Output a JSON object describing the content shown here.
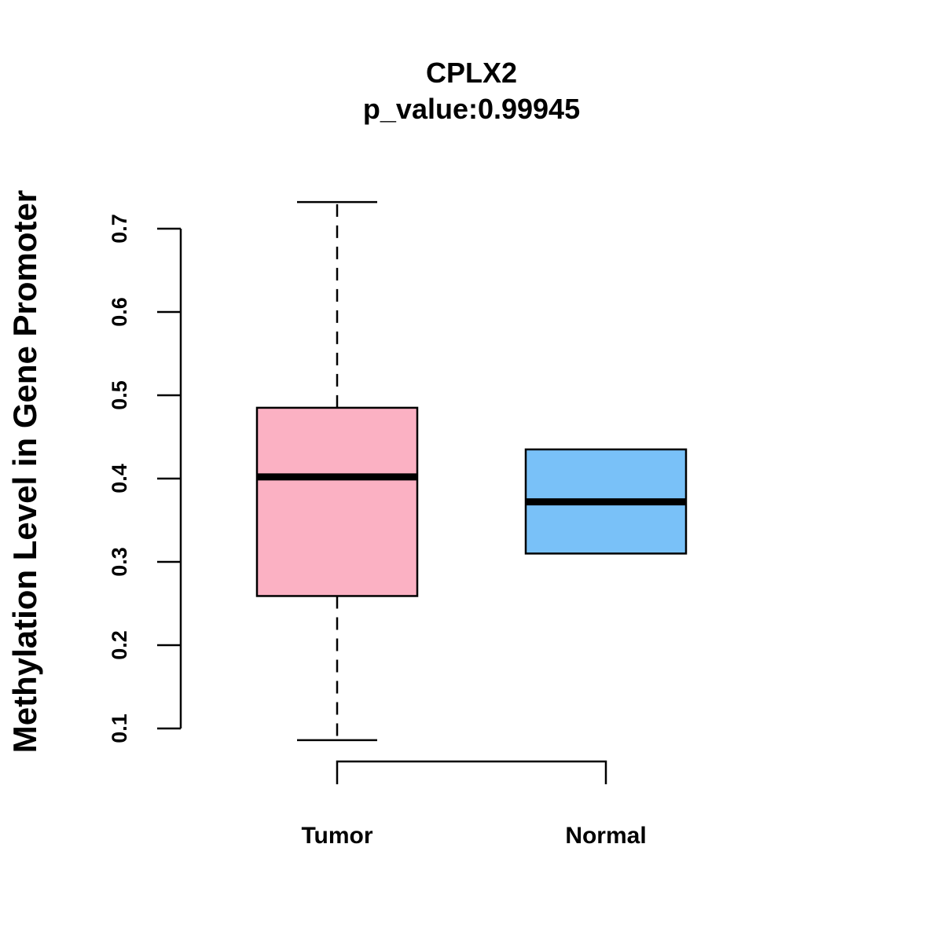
{
  "chart_data": {
    "type": "boxplot",
    "title": "CPLX2",
    "subtitle": "p_value:0.99945",
    "ylabel": "Methylation Level in Gene Promoter",
    "xlabel": "",
    "ylim": [
      0.1,
      0.7
    ],
    "yticks": [
      0.1,
      0.2,
      0.3,
      0.4,
      0.5,
      0.6,
      0.7
    ],
    "ytick_labels": [
      "0.1",
      "0.2",
      "0.3",
      "0.4",
      "0.5",
      "0.6",
      "0.7"
    ],
    "comparison_bracket": true,
    "groups": [
      {
        "name": "Tumor",
        "color": "#FBB1C3",
        "whisker_low": 0.086,
        "q1": 0.259,
        "median": 0.402,
        "q3": 0.485,
        "whisker_high": 0.732
      },
      {
        "name": "Normal",
        "color": "#79C1F8",
        "whisker_low": 0.31,
        "q1": 0.31,
        "median": 0.372,
        "q3": 0.435,
        "whisker_high": 0.435
      }
    ]
  }
}
